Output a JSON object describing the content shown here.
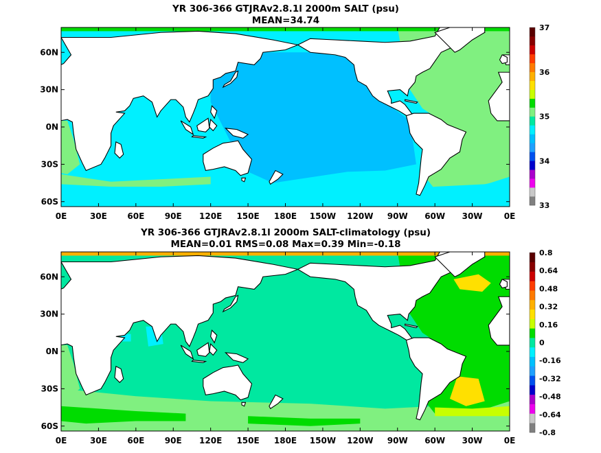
{
  "top": {
    "title_line1": "YR 306-366 GTJRAv2.8.1l 2000m SALT (psu)",
    "title_line2": "MEAN=34.74",
    "colorbar_ticks": [
      "37",
      "36",
      "35",
      "34",
      "33"
    ],
    "colorbar_colors": [
      "#808080",
      "#c8c8c8",
      "#ee00ee",
      "#aa00cc",
      "#0000cc",
      "#0050ee",
      "#1ea0ff",
      "#00c0ff",
      "#00f0ff",
      "#00e8a0",
      "#80f080",
      "#00dc00",
      "#c8ff00",
      "#ffe000",
      "#ffb000",
      "#ff7a00",
      "#ff3c00",
      "#cc0000",
      "#880000",
      "#5a0000"
    ],
    "colors": {
      "pacific": "#00c0ff",
      "southern": "#00f0ff",
      "atlantic": "#80f080",
      "arctic": "#00dc00",
      "indian": "#00f0ff"
    }
  },
  "bottom": {
    "title_line1": "YR 306-366 GTJRAv2.8.1l 2000m SALT-climatology (psu)",
    "title_line2": "MEAN=0.01   RMS=0.08   Max=0.39   Min=-0.18",
    "colorbar_ticks": [
      "0.8",
      "0.64",
      "0.48",
      "0.32",
      "0.16",
      "0",
      "-0.16",
      "-0.32",
      "-0.48",
      "-0.64",
      "-0.8"
    ],
    "colorbar_colors": [
      "#808080",
      "#c8c8c8",
      "#ee00ee",
      "#aa00cc",
      "#0000cc",
      "#0050ee",
      "#1ea0ff",
      "#00c0ff",
      "#00f0ff",
      "#00e8a0",
      "#00dc00",
      "#c8ff00",
      "#ffe000",
      "#ffb000",
      "#ff7a00",
      "#ff3c00",
      "#cc0000",
      "#880000",
      "#5a0000"
    ],
    "colors": {
      "pacific": "#00e8a0",
      "southern": "#80f080",
      "atlantic": "#00dc00",
      "arctic": "#ffb000",
      "yellow": "#ffe000"
    }
  },
  "axes": {
    "lon_ticks": [
      "0E",
      "30E",
      "60E",
      "90E",
      "120E",
      "150E",
      "180E",
      "150W",
      "120W",
      "90W",
      "60W",
      "30W",
      "0E"
    ],
    "lat_ticks": [
      "60N",
      "30N",
      "0N",
      "30S",
      "60S"
    ]
  }
}
